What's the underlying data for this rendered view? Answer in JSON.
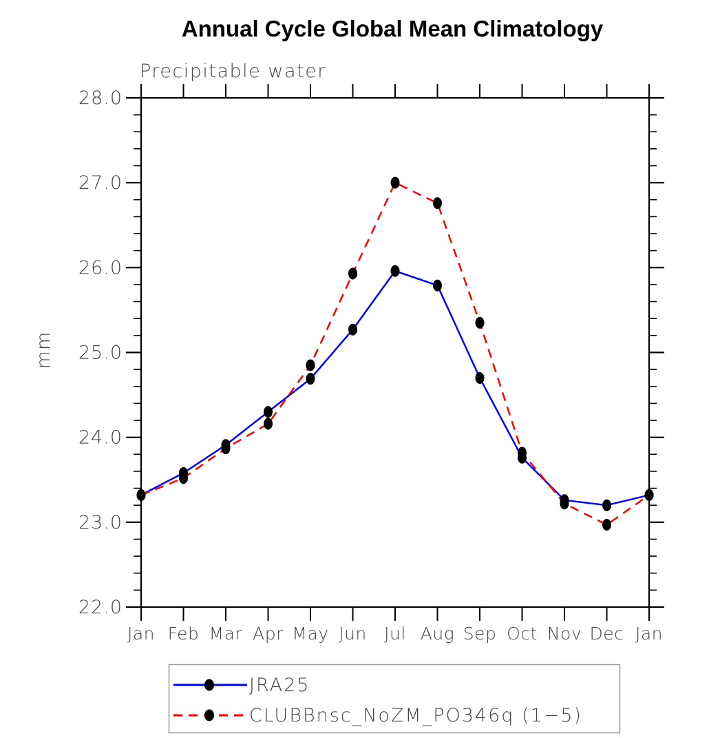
{
  "title": "Annual Cycle Global Mean Climatology",
  "subtitle": "Precipitable water",
  "ylabel": "mm",
  "colors": {
    "axis": "#000000",
    "text_muted": "#444444",
    "legend_border": "#999999",
    "series_jra25": "#0000ff",
    "series_clubb": "#ff0000",
    "marker": "#000000"
  },
  "legend": {
    "entries": [
      "JRA25",
      "CLUBBnsc_NoZM_PO346q (1−5)"
    ]
  },
  "chart_data": {
    "type": "line",
    "categories": [
      "Jan",
      "Feb",
      "Mar",
      "Apr",
      "May",
      "Jun",
      "Jul",
      "Aug",
      "Sep",
      "Oct",
      "Nov",
      "Dec",
      "Jan"
    ],
    "series": [
      {
        "name": "JRA25",
        "color": "#0000ff",
        "line_style": "solid",
        "marker_color": "#000000",
        "values": [
          23.32,
          23.58,
          23.91,
          24.3,
          24.69,
          25.27,
          25.96,
          25.79,
          24.7,
          23.76,
          23.26,
          23.2,
          23.32
        ]
      },
      {
        "name": "CLUBBnsc_NoZM_PO346q (1−5)",
        "color": "#ff0000",
        "line_style": "dashed",
        "marker_color": "#000000",
        "values": [
          23.32,
          23.52,
          23.87,
          24.16,
          24.85,
          25.93,
          27.0,
          26.76,
          25.35,
          23.82,
          23.22,
          22.97,
          23.32
        ]
      }
    ],
    "title": "Annual Cycle Global Mean Climatology",
    "subtitle": "Precipitable water",
    "xlabel": "",
    "ylabel": "mm",
    "ylim": [
      22.0,
      28.0
    ],
    "ytick_major": 1.0,
    "ytick_minor": 0.2,
    "ytick_labels": [
      "22.0",
      "23.0",
      "24.0",
      "25.0",
      "26.0",
      "27.0",
      "28.0"
    ],
    "grid": false,
    "legend_position": "bottom"
  }
}
